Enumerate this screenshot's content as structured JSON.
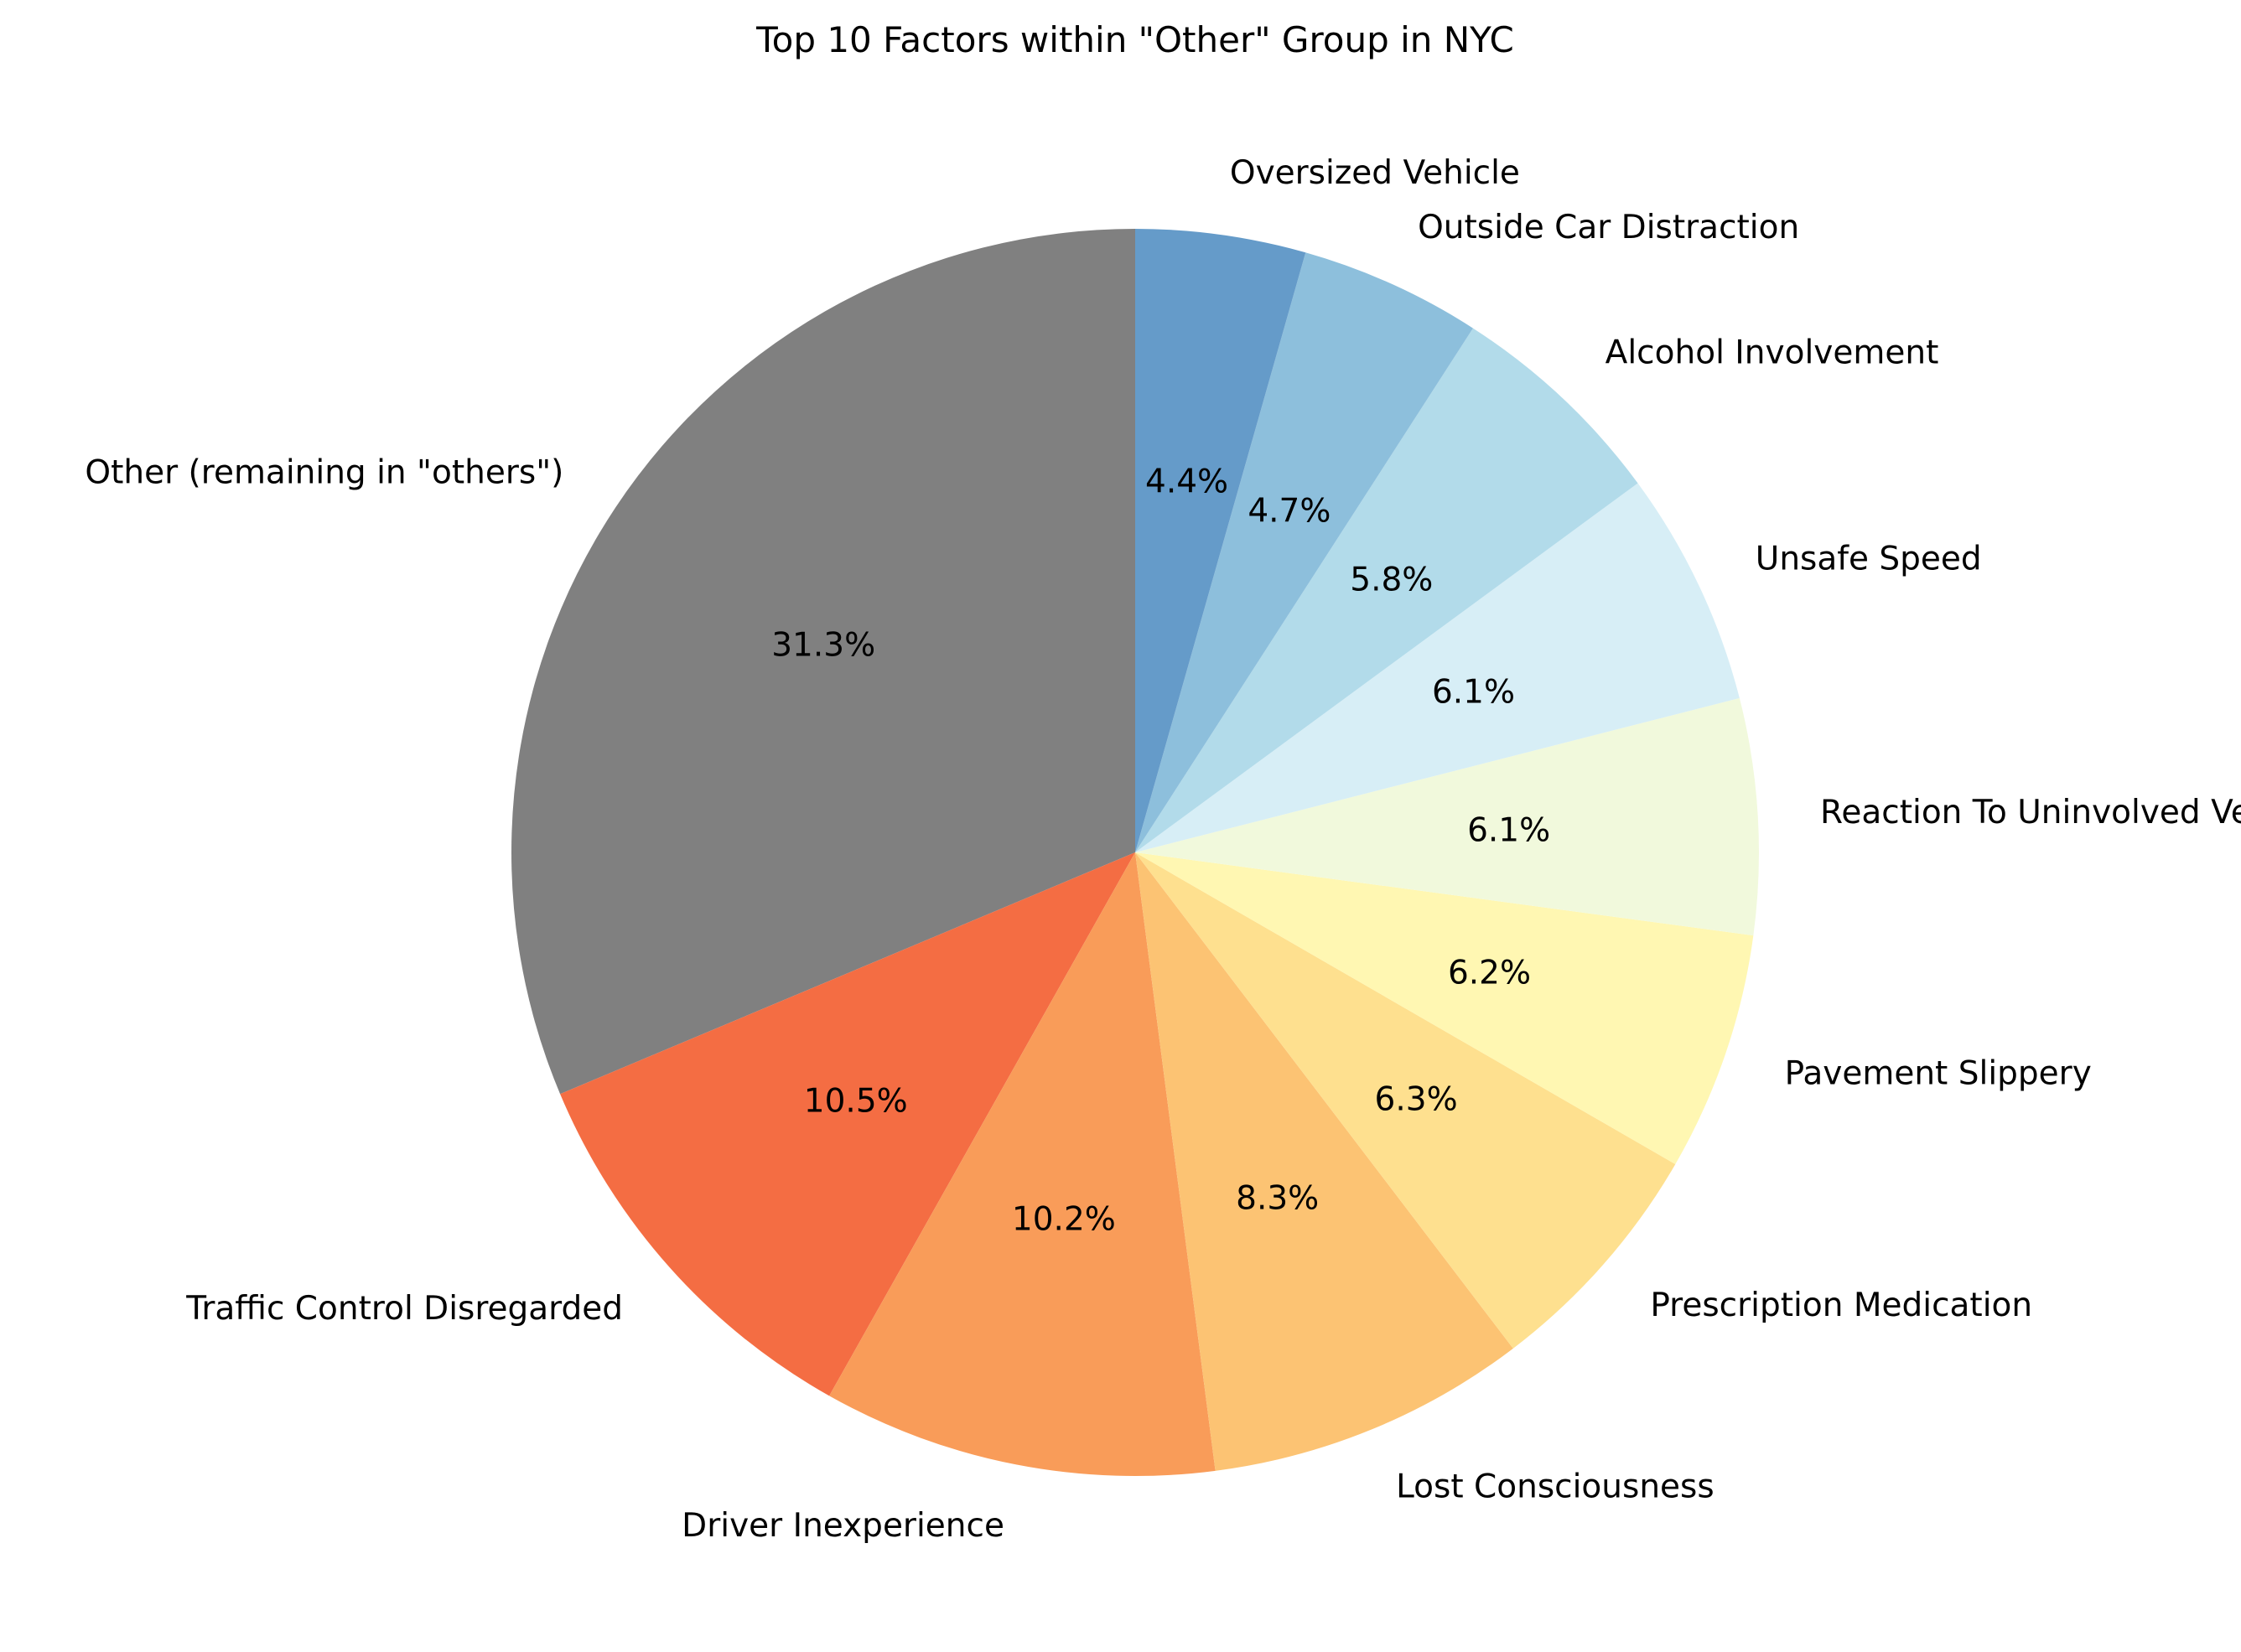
{
  "chart_data": {
    "type": "pie",
    "title": "Top 10 Factors within \"Other\" Group in NYC",
    "start_angle_deg": 90,
    "direction": "counterclockwise",
    "slices": [
      {
        "label": "Other (remaining in \"others\")",
        "value": 31.3,
        "pct_label": "31.3%",
        "color": "#808080"
      },
      {
        "label": "Traffic Control Disregarded",
        "value": 10.5,
        "pct_label": "10.5%",
        "color": "#f46d43"
      },
      {
        "label": "Driver Inexperience",
        "value": 10.2,
        "pct_label": "10.2%",
        "color": "#f99c59"
      },
      {
        "label": "Lost Consciousness",
        "value": 8.3,
        "pct_label": "8.3%",
        "color": "#fcc373"
      },
      {
        "label": "Prescription Medication",
        "value": 6.3,
        "pct_label": "6.3%",
        "color": "#fee08f"
      },
      {
        "label": "Pavement Slippery",
        "value": 6.2,
        "pct_label": "6.2%",
        "color": "#fff7b2"
      },
      {
        "label": "Reaction To Uninvolved Vehicle",
        "value": 6.1,
        "pct_label": "6.1%",
        "color": "#f1f9dc"
      },
      {
        "label": "Unsafe Speed",
        "value": 6.1,
        "pct_label": "6.1%",
        "color": "#d7eef6"
      },
      {
        "label": "Alcohol Involvement",
        "value": 5.8,
        "pct_label": "5.8%",
        "color": "#b2dbea"
      },
      {
        "label": "Outside Car Distraction",
        "value": 4.7,
        "pct_label": "4.7%",
        "color": "#8dbfdc"
      },
      {
        "label": "Oversized Vehicle",
        "value": 4.4,
        "pct_label": "4.4%",
        "color": "#659bc9"
      }
    ]
  }
}
